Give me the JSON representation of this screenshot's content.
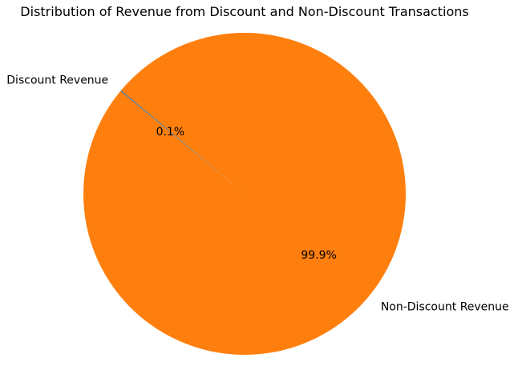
{
  "chart_data": {
    "type": "pie",
    "title": "Distribution of Revenue from Discount and Non-Discount Transactions",
    "labels": [
      "Discount Revenue",
      "Non-Discount Revenue"
    ],
    "values": [
      0.1,
      99.9
    ],
    "percent_labels": [
      "0.1%",
      "99.9%"
    ],
    "colors": [
      "#1f77b4",
      "#ff7f0e"
    ],
    "start_angle_deg": 140,
    "counterclock": true,
    "legend": "none"
  }
}
